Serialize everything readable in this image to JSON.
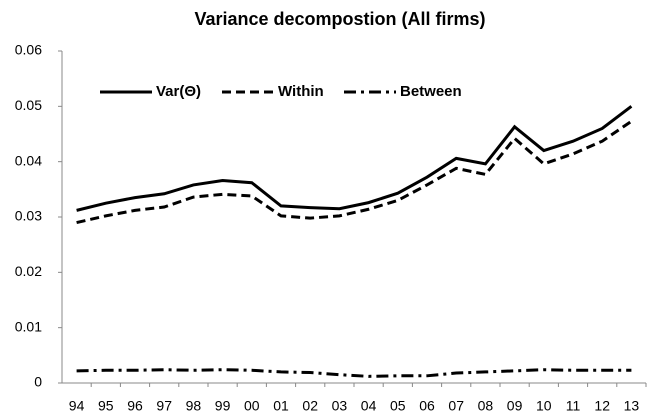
{
  "chart_data": {
    "type": "line",
    "title": "Variance decompostion (All firms)",
    "categories": [
      "94",
      "95",
      "96",
      "97",
      "98",
      "99",
      "00",
      "01",
      "02",
      "03",
      "04",
      "05",
      "06",
      "07",
      "08",
      "09",
      "10",
      "11",
      "12",
      "13"
    ],
    "series": [
      {
        "name": "Var(Θ)",
        "color": "#000000",
        "dash": "solid",
        "values": [
          0.0312,
          0.0325,
          0.0335,
          0.0342,
          0.0358,
          0.0366,
          0.0362,
          0.032,
          0.0317,
          0.0315,
          0.0326,
          0.0343,
          0.0372,
          0.0406,
          0.0396,
          0.0463,
          0.042,
          0.0437,
          0.046,
          0.05
        ]
      },
      {
        "name": "Within",
        "color": "#000000",
        "dash": "dashed",
        "values": [
          0.029,
          0.0302,
          0.0312,
          0.0318,
          0.0336,
          0.0341,
          0.0338,
          0.0302,
          0.0298,
          0.0302,
          0.0314,
          0.033,
          0.0358,
          0.0388,
          0.0377,
          0.0442,
          0.0396,
          0.0414,
          0.0437,
          0.0473
        ]
      },
      {
        "name": "Between",
        "color": "#000000",
        "dash": "dashdot",
        "values": [
          0.0022,
          0.0023,
          0.0023,
          0.0024,
          0.0023,
          0.0024,
          0.0023,
          0.002,
          0.0019,
          0.0015,
          0.0012,
          0.0013,
          0.0013,
          0.0018,
          0.002,
          0.0022,
          0.0024,
          0.0023,
          0.0023,
          0.0023
        ]
      }
    ],
    "ylim": [
      0,
      0.06
    ],
    "yticks": [
      0,
      0.01,
      0.02,
      0.03,
      0.04,
      0.05,
      0.06
    ],
    "grid": false,
    "legend": "upper left"
  }
}
